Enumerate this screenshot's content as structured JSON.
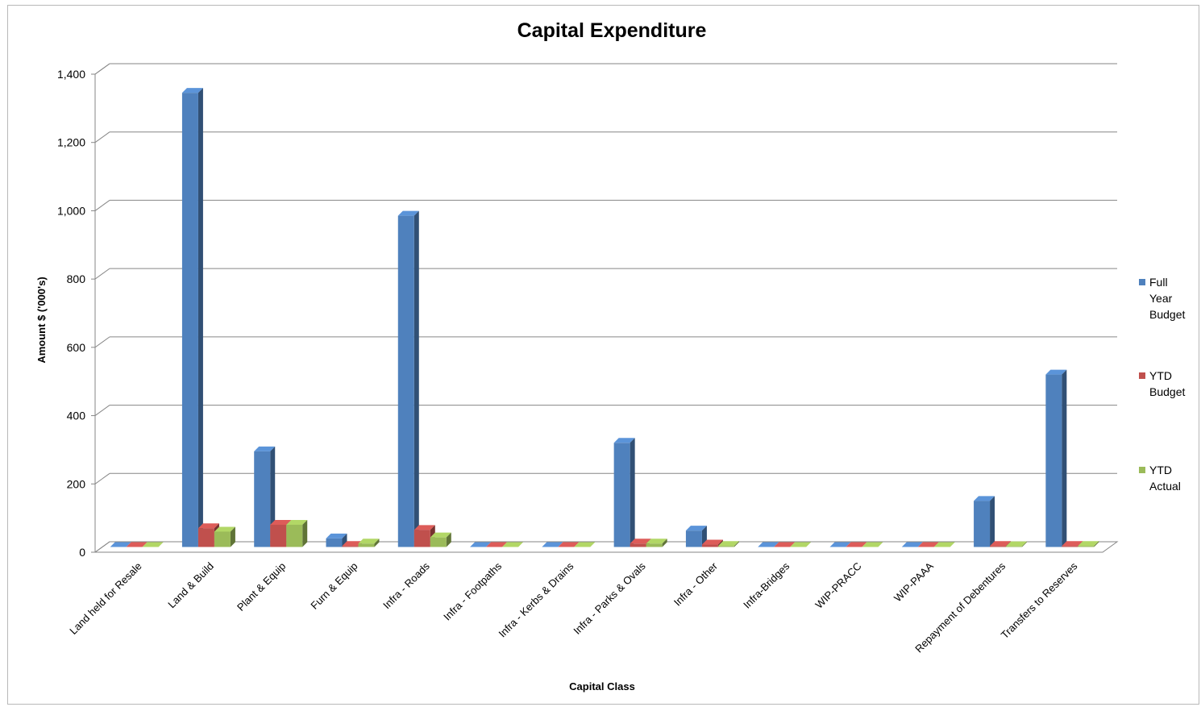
{
  "chart_data": {
    "type": "bar",
    "title": "Capital Expenditure",
    "xlabel": "Capital Class",
    "ylabel": "Amount $ ('000's)",
    "ylim": [
      0,
      1400
    ],
    "yticks": [
      "0",
      "200",
      "400",
      "600",
      "800",
      "1,000",
      "1,200",
      "1,400"
    ],
    "grid": true,
    "legend_position": "right",
    "categories": [
      "Land held for Resale",
      "Land & Build",
      "Plant & Equip",
      "Furn & Equip",
      "Infra - Roads",
      "Infra - Footpaths",
      "Infra - Kerbs & Drains",
      "Infra - Parks & Ovals",
      "Infra - Other",
      "Infra-Bridges",
      "WIP-PRACC",
      "WIP-PAAA",
      "Repayment of Debentures",
      "Transfers to Reserves"
    ],
    "series": [
      {
        "name": "Full Year Budget",
        "legend_lines": [
          "Full",
          "Year",
          "Budget"
        ],
        "color": "#4f81bd",
        "values": [
          0,
          1330,
          280,
          25,
          970,
          0,
          0,
          305,
          48,
          0,
          0,
          0,
          135,
          505
        ]
      },
      {
        "name": "YTD Budget",
        "legend_lines": [
          "YTD",
          "Budget"
        ],
        "color": "#c0504d",
        "values": [
          0,
          55,
          65,
          3,
          50,
          0,
          0,
          10,
          7,
          0,
          0,
          0,
          3,
          3
        ]
      },
      {
        "name": "YTD Actual",
        "legend_lines": [
          "YTD",
          "Actual"
        ],
        "color": "#9bbb59",
        "values": [
          0,
          45,
          65,
          10,
          28,
          0,
          0,
          10,
          3,
          0,
          0,
          0,
          2,
          3
        ]
      }
    ]
  }
}
